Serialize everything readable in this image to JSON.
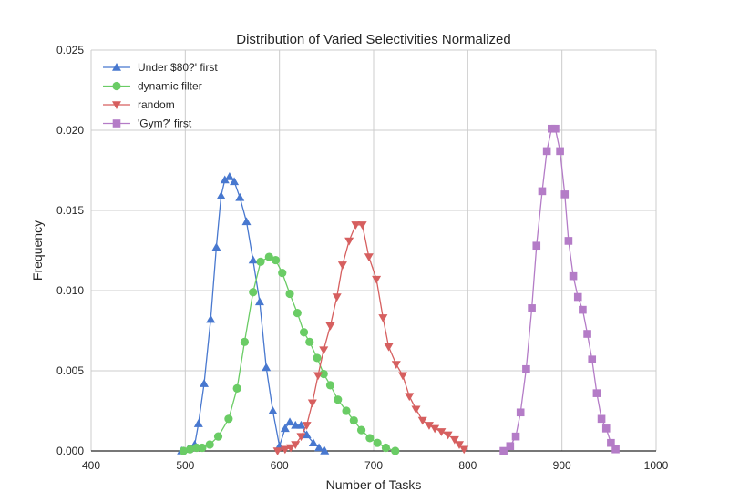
{
  "chart_data": {
    "type": "line",
    "title": "Distribution of Varied Selectivities Normalized",
    "xlabel": "Number of Tasks",
    "ylabel": "Frequency",
    "xlim": [
      400,
      1000
    ],
    "ylim": [
      0,
      0.025
    ],
    "xticks": [
      "400",
      "500",
      "600",
      "700",
      "800",
      "900",
      "1000"
    ],
    "yticks": [
      "0.000",
      "0.005",
      "0.010",
      "0.015",
      "0.020",
      "0.025"
    ],
    "grid": true,
    "legend_position": "top-left",
    "series": [
      {
        "name": "Under $80?' first",
        "color": "#4878cf",
        "marker": "triangle-up",
        "x": [
          496,
          503,
          510,
          514,
          520,
          527,
          533,
          538,
          542,
          547,
          552,
          558,
          565,
          572,
          579,
          586,
          593,
          600,
          606,
          611,
          617,
          623,
          629,
          636,
          642,
          648
        ],
        "y": [
          0.0,
          0.0001,
          0.0004,
          0.0017,
          0.0042,
          0.0082,
          0.0127,
          0.0159,
          0.0169,
          0.0171,
          0.0168,
          0.0158,
          0.0143,
          0.0119,
          0.0093,
          0.0052,
          0.0025,
          0.0003,
          0.0014,
          0.0018,
          0.0016,
          0.0016,
          0.001,
          0.0005,
          0.0002,
          0.0
        ]
      },
      {
        "name": "dynamic filter",
        "color": "#6acc65",
        "marker": "circle",
        "x": [
          498,
          505,
          512,
          518,
          526,
          535,
          546,
          555,
          563,
          572,
          580,
          589,
          596,
          603,
          611,
          619,
          626,
          632,
          640,
          647,
          654,
          662,
          671,
          679,
          687,
          696,
          704,
          713,
          723
        ],
        "y": [
          0.0,
          0.0001,
          0.0002,
          0.0002,
          0.0004,
          0.0009,
          0.002,
          0.0039,
          0.0068,
          0.0099,
          0.0118,
          0.0121,
          0.0119,
          0.0111,
          0.0098,
          0.0086,
          0.0074,
          0.0068,
          0.0058,
          0.0048,
          0.0041,
          0.0032,
          0.0025,
          0.0019,
          0.0013,
          0.0008,
          0.0005,
          0.0002,
          0.0
        ]
      },
      {
        "name": "random",
        "color": "#d65f5f",
        "marker": "triangle-down",
        "x": [
          598,
          606,
          612,
          617,
          623,
          629,
          635,
          641,
          647,
          654,
          661,
          667,
          674,
          681,
          688,
          695,
          703,
          710,
          716,
          724,
          731,
          738,
          745,
          752,
          759,
          765,
          772,
          779,
          786,
          791,
          796
        ],
        "y": [
          0.0,
          0.0001,
          0.0002,
          0.0004,
          0.0009,
          0.0016,
          0.003,
          0.0047,
          0.0063,
          0.0078,
          0.0096,
          0.0116,
          0.0131,
          0.0141,
          0.0141,
          0.0121,
          0.0107,
          0.0083,
          0.0065,
          0.0054,
          0.0047,
          0.0034,
          0.0026,
          0.0019,
          0.0016,
          0.0014,
          0.0012,
          0.001,
          0.0007,
          0.0004,
          0.0001
        ]
      },
      {
        "name": "'Gym?' first",
        "color": "#b47cc7",
        "marker": "square",
        "x": [
          838,
          845,
          851,
          856,
          862,
          868,
          873,
          879,
          884,
          889,
          893,
          898,
          903,
          907,
          912,
          917,
          922,
          927,
          932,
          937,
          942,
          947,
          952,
          957
        ],
        "y": [
          0.0,
          0.0003,
          0.0009,
          0.0024,
          0.0051,
          0.0089,
          0.0128,
          0.0162,
          0.0187,
          0.0201,
          0.0201,
          0.0187,
          0.016,
          0.0131,
          0.0109,
          0.0096,
          0.0088,
          0.0073,
          0.0057,
          0.0036,
          0.002,
          0.0014,
          0.0005,
          0.0001
        ]
      }
    ]
  }
}
